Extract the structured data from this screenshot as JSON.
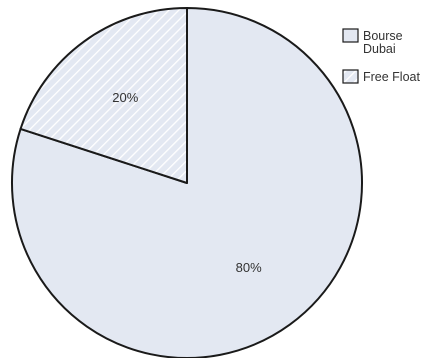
{
  "chart_data": {
    "type": "pie",
    "title": "",
    "slices": [
      {
        "name": "Bourse Dubai",
        "legend_lines": [
          "Bourse",
          "Dubai"
        ],
        "value": 80,
        "label": "80%",
        "color": "#e3e8f2",
        "pattern": "solid"
      },
      {
        "name": "Free Float",
        "legend_lines": [
          "Free Float"
        ],
        "value": 20,
        "label": "20%",
        "color": "#e3e8f2",
        "pattern": "diagonal-hatch"
      }
    ],
    "start": "top",
    "direction": "clockwise",
    "legend": {
      "position": "top-right"
    },
    "stroke_color": "#1a1a1a",
    "hatch_color": "#ffffff"
  }
}
